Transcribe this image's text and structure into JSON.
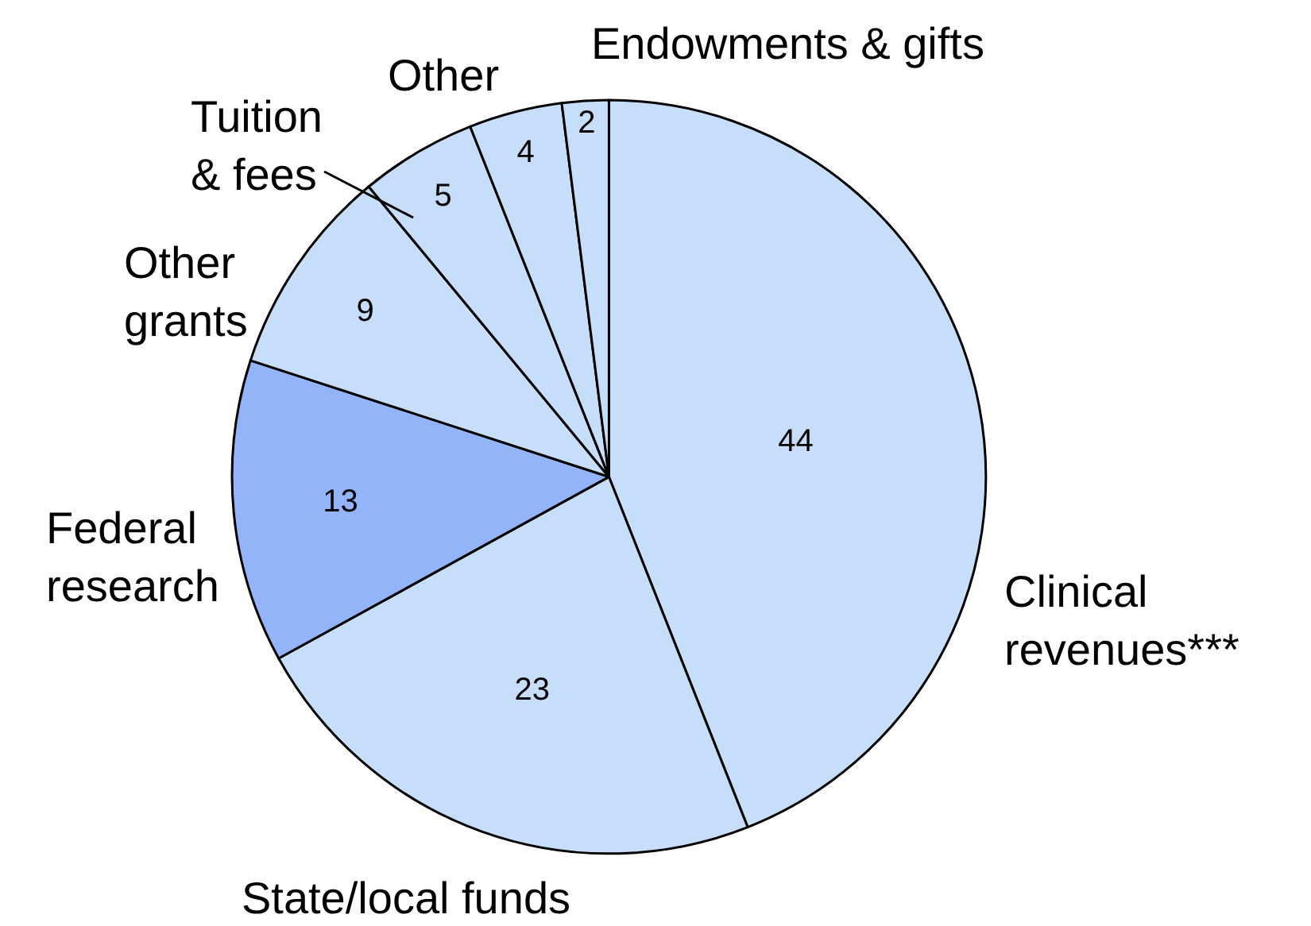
{
  "chart_data": {
    "type": "pie",
    "categories": [
      "Clinical\nrevenues***",
      "State/local funds",
      "Federal\nresearch",
      "Other\ngrants",
      "Tuition\n& fees",
      "Other",
      "Endowments & gifts"
    ],
    "values": [
      44,
      23,
      13,
      9,
      5,
      4,
      2
    ],
    "colors": [
      "#c6defa",
      "#c6defa",
      "#94b4fa",
      "#c6defa",
      "#c6defa",
      "#c6defa",
      "#c6defa"
    ],
    "data_labels": true,
    "legend": false
  }
}
